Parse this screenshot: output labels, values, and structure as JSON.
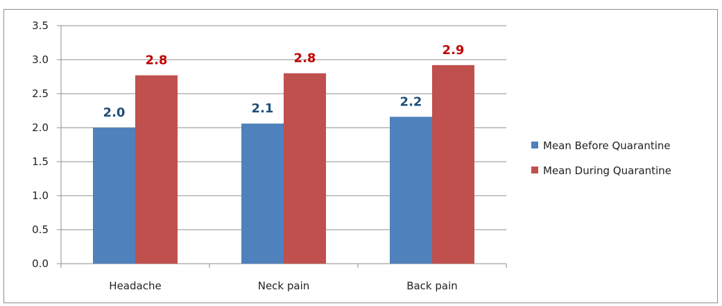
{
  "chart_data": {
    "type": "bar",
    "title": "",
    "xlabel": "",
    "ylabel": "",
    "categories": [
      "Headache",
      "Neck pain",
      "Back pain"
    ],
    "series": [
      {
        "name": "Mean Before Quarantine",
        "values": [
          2.0,
          2.06,
          2.16
        ],
        "labels": [
          "2.0",
          "2.1",
          "2.2"
        ],
        "color": "#4f81bd",
        "label_color": "#1f4e79"
      },
      {
        "name": "Mean During Quarantine",
        "values": [
          2.77,
          2.8,
          2.92
        ],
        "labels": [
          "2.8",
          "2.8",
          "2.9"
        ],
        "color": "#c0504d",
        "label_color": "#c00000"
      }
    ],
    "ylim": [
      0,
      3.5
    ],
    "yticks": [
      "0.0",
      "0.5",
      "1.0",
      "1.5",
      "2.0",
      "2.5",
      "3.0",
      "3.5"
    ],
    "grid": true,
    "legend_position": "right"
  }
}
